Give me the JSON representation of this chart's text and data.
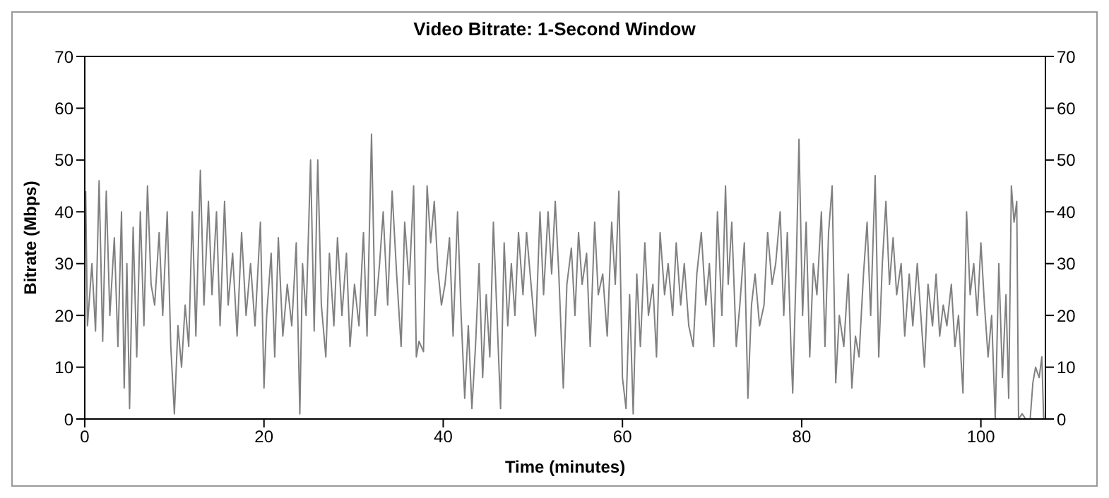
{
  "chart_data": {
    "type": "line",
    "title": "Video Bitrate: 1-Second Window",
    "xlabel": "Time (minutes)",
    "ylabel": "Bitrate (Mbps)",
    "xlim": [
      0,
      107.2
    ],
    "xticks": [
      0,
      20,
      40,
      60,
      80,
      100
    ],
    "ylim": [
      0,
      70
    ],
    "yticks": [
      0,
      10,
      20,
      30,
      40,
      50,
      60,
      70
    ],
    "y2lim": [
      0,
      70
    ],
    "y2ticks": [
      0,
      10,
      20,
      30,
      40,
      50,
      60,
      70
    ],
    "marker": "none",
    "line_style": "solid",
    "series": [
      {
        "color": "#808080",
        "x": [
          0.1,
          0.3,
          0.8,
          1.2,
          1.6,
          2.0,
          2.4,
          2.8,
          3.3,
          3.7,
          4.1,
          4.4,
          4.7,
          5.0,
          5.4,
          5.8,
          6.2,
          6.6,
          7.0,
          7.4,
          7.8,
          8.3,
          8.7,
          9.2,
          9.6,
          10.0,
          10.4,
          10.8,
          11.2,
          11.6,
          12.0,
          12.4,
          12.9,
          13.3,
          13.8,
          14.2,
          14.7,
          15.1,
          15.6,
          16.0,
          16.5,
          17.0,
          17.5,
          18.0,
          18.5,
          19.0,
          19.6,
          20.0,
          20.3,
          20.8,
          21.2,
          21.6,
          22.1,
          22.6,
          23.1,
          23.6,
          24.0,
          24.3,
          24.7,
          25.2,
          25.6,
          26.0,
          26.4,
          26.9,
          27.3,
          27.8,
          28.2,
          28.7,
          29.2,
          29.6,
          30.1,
          30.6,
          31.1,
          31.5,
          32.0,
          32.4,
          32.9,
          33.3,
          33.8,
          34.3,
          34.8,
          35.3,
          35.7,
          36.2,
          36.7,
          37.0,
          37.3,
          37.8,
          38.2,
          38.6,
          39.0,
          39.4,
          39.8,
          40.2,
          40.7,
          41.1,
          41.6,
          42.0,
          42.4,
          42.8,
          43.2,
          43.6,
          44.0,
          44.4,
          44.8,
          45.2,
          45.6,
          46.0,
          46.4,
          46.8,
          47.2,
          47.6,
          48.0,
          48.4,
          48.9,
          49.3,
          49.8,
          50.3,
          50.8,
          51.2,
          51.7,
          52.1,
          52.5,
          52.9,
          53.4,
          53.8,
          54.3,
          54.7,
          55.1,
          55.5,
          56.0,
          56.4,
          56.9,
          57.3,
          57.8,
          58.3,
          58.8,
          59.2,
          59.6,
          60.0,
          60.4,
          60.8,
          61.2,
          61.6,
          62.0,
          62.5,
          62.9,
          63.4,
          63.8,
          64.2,
          64.7,
          65.1,
          65.6,
          66.0,
          66.5,
          66.9,
          67.4,
          67.9,
          68.3,
          68.8,
          69.3,
          69.7,
          70.2,
          70.6,
          71.1,
          71.5,
          71.8,
          72.2,
          72.7,
          73.1,
          73.6,
          74.0,
          74.4,
          74.8,
          75.3,
          75.8,
          76.2,
          76.7,
          77.1,
          77.6,
          78.0,
          78.4,
          78.8,
          79.0,
          79.4,
          79.7,
          80.1,
          80.5,
          80.9,
          81.3,
          81.7,
          82.2,
          82.6,
          83.0,
          83.4,
          83.8,
          84.2,
          84.7,
          85.2,
          85.6,
          86.0,
          86.4,
          86.9,
          87.3,
          87.7,
          88.2,
          88.6,
          89.0,
          89.4,
          89.8,
          90.2,
          90.6,
          91.1,
          91.5,
          92.0,
          92.4,
          92.9,
          93.3,
          93.7,
          94.1,
          94.6,
          95.0,
          95.4,
          95.8,
          96.2,
          96.7,
          97.1,
          97.5,
          98.0,
          98.4,
          98.8,
          99.2,
          99.6,
          100.0,
          100.4,
          100.8,
          101.2,
          101.6,
          102.0,
          102.4,
          102.8,
          103.1,
          103.4,
          103.7,
          104.0,
          104.2,
          104.6,
          105.0,
          105.5,
          105.8,
          106.1,
          106.5,
          106.8,
          107.0
        ],
        "values": [
          44,
          18,
          30,
          17,
          46,
          15,
          44,
          20,
          35,
          14,
          40,
          6,
          30,
          2,
          37,
          12,
          40,
          18,
          45,
          26,
          22,
          36,
          20,
          40,
          14,
          1,
          18,
          10,
          22,
          14,
          40,
          16,
          48,
          22,
          42,
          24,
          40,
          18,
          42,
          22,
          32,
          16,
          36,
          20,
          30,
          18,
          38,
          6,
          20,
          32,
          12,
          35,
          16,
          26,
          18,
          34,
          1,
          30,
          20,
          50,
          17,
          50,
          22,
          12,
          32,
          18,
          35,
          20,
          32,
          14,
          26,
          18,
          36,
          16,
          55,
          20,
          30,
          40,
          22,
          44,
          28,
          14,
          38,
          26,
          45,
          12,
          15,
          13,
          45,
          34,
          42,
          29,
          22,
          26,
          35,
          16,
          40,
          20,
          4,
          18,
          2,
          14,
          30,
          8,
          24,
          12,
          38,
          20,
          2,
          34,
          18,
          30,
          20,
          36,
          24,
          36,
          26,
          16,
          40,
          24,
          40,
          28,
          42,
          28,
          6,
          26,
          33,
          20,
          36,
          26,
          32,
          14,
          38,
          24,
          28,
          16,
          38,
          26,
          44,
          8,
          2,
          24,
          1,
          28,
          14,
          34,
          20,
          26,
          12,
          36,
          24,
          30,
          20,
          34,
          22,
          30,
          18,
          14,
          28,
          36,
          22,
          30,
          14,
          40,
          20,
          45,
          26,
          38,
          14,
          22,
          34,
          4,
          22,
          28,
          18,
          22,
          36,
          26,
          30,
          40,
          20,
          36,
          14,
          5,
          30,
          54,
          20,
          38,
          12,
          30,
          24,
          40,
          14,
          36,
          45,
          7,
          20,
          14,
          28,
          6,
          16,
          12,
          28,
          38,
          20,
          47,
          12,
          30,
          42,
          26,
          35,
          24,
          30,
          16,
          28,
          18,
          30,
          20,
          10,
          26,
          18,
          28,
          16,
          22,
          18,
          26,
          14,
          20,
          5,
          40,
          24,
          30,
          20,
          34,
          22,
          12,
          20,
          0,
          30,
          8,
          24,
          4,
          45,
          38,
          42,
          0,
          1,
          0,
          0,
          7,
          10,
          8,
          12,
          0
        ]
      }
    ]
  }
}
